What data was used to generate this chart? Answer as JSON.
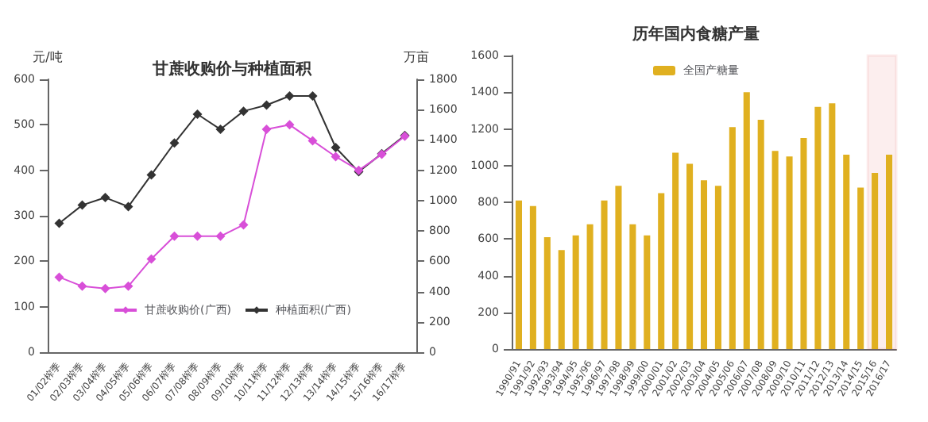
{
  "chart_data": [
    {
      "type": "line",
      "title": "甘蔗收购价与种植面积",
      "ylabel": "元/吨",
      "y2label": "万亩",
      "categories": [
        "01/02榨季",
        "02/03榨季",
        "03/04榨季",
        "04/05榨季",
        "05/06榨季",
        "06/07榨季",
        "07/08榨季",
        "08/09榨季",
        "09/10榨季",
        "10/11榨季",
        "11/12榨季",
        "12/13榨季",
        "13/14榨季",
        "14/15榨季",
        "15/16榨季",
        "16/17榨季"
      ],
      "series": [
        {
          "name": "甘蔗收购价(广西)",
          "color": "#d84fd8",
          "values": [
            165,
            145,
            140,
            145,
            205,
            255,
            255,
            255,
            280,
            490,
            500,
            465,
            430,
            400,
            435,
            475
          ]
        },
        {
          "name": "种植面积(广西)",
          "color": "#333333",
          "axis": "y2",
          "values": [
            850,
            970,
            1020,
            960,
            1170,
            1380,
            1570,
            1470,
            1590,
            1630,
            1690,
            1690,
            1350,
            1190,
            1310,
            1430
          ]
        }
      ],
      "ylim": [
        0,
        600
      ],
      "yticks": [
        0,
        100,
        200,
        300,
        400,
        500,
        600
      ],
      "y2lim": [
        0,
        1800
      ],
      "y2ticks": [
        0,
        200,
        400,
        600,
        800,
        1000,
        1200,
        1400,
        1600,
        1800
      ],
      "marker": "diamond",
      "legend": "bottom"
    },
    {
      "type": "bar",
      "title": "历年国内食糖产量",
      "categories": [
        "1990/91",
        "1991/92",
        "1992/93",
        "1993/94",
        "1994/95",
        "1995/96",
        "1996/97",
        "1997/98",
        "1998/99",
        "1999/00",
        "2000/01",
        "2001/02",
        "2002/03",
        "2003/04",
        "2004/05",
        "2005/06",
        "2006/07",
        "2007/08",
        "2008/09",
        "2009/10",
        "2010/11",
        "2011/12",
        "2012/13",
        "2013/14",
        "2014/15",
        "2015/16",
        "2016/17"
      ],
      "series": [
        {
          "name": "全国产糖量",
          "color": "#e0b020",
          "values": [
            810,
            780,
            610,
            540,
            620,
            680,
            810,
            890,
            680,
            620,
            850,
            1070,
            1010,
            920,
            890,
            1210,
            1400,
            1250,
            1080,
            1050,
            1150,
            1320,
            1340,
            1060,
            880,
            960,
            1060
          ]
        }
      ],
      "ylim": [
        0,
        1600
      ],
      "yticks": [
        0,
        200,
        400,
        600,
        800,
        1000,
        1200,
        1400,
        1600
      ],
      "bands": [
        {
          "axis": "x",
          "from": "2015/16",
          "to": "2016/17",
          "color": "#d9262b"
        }
      ],
      "legend": "top"
    }
  ]
}
